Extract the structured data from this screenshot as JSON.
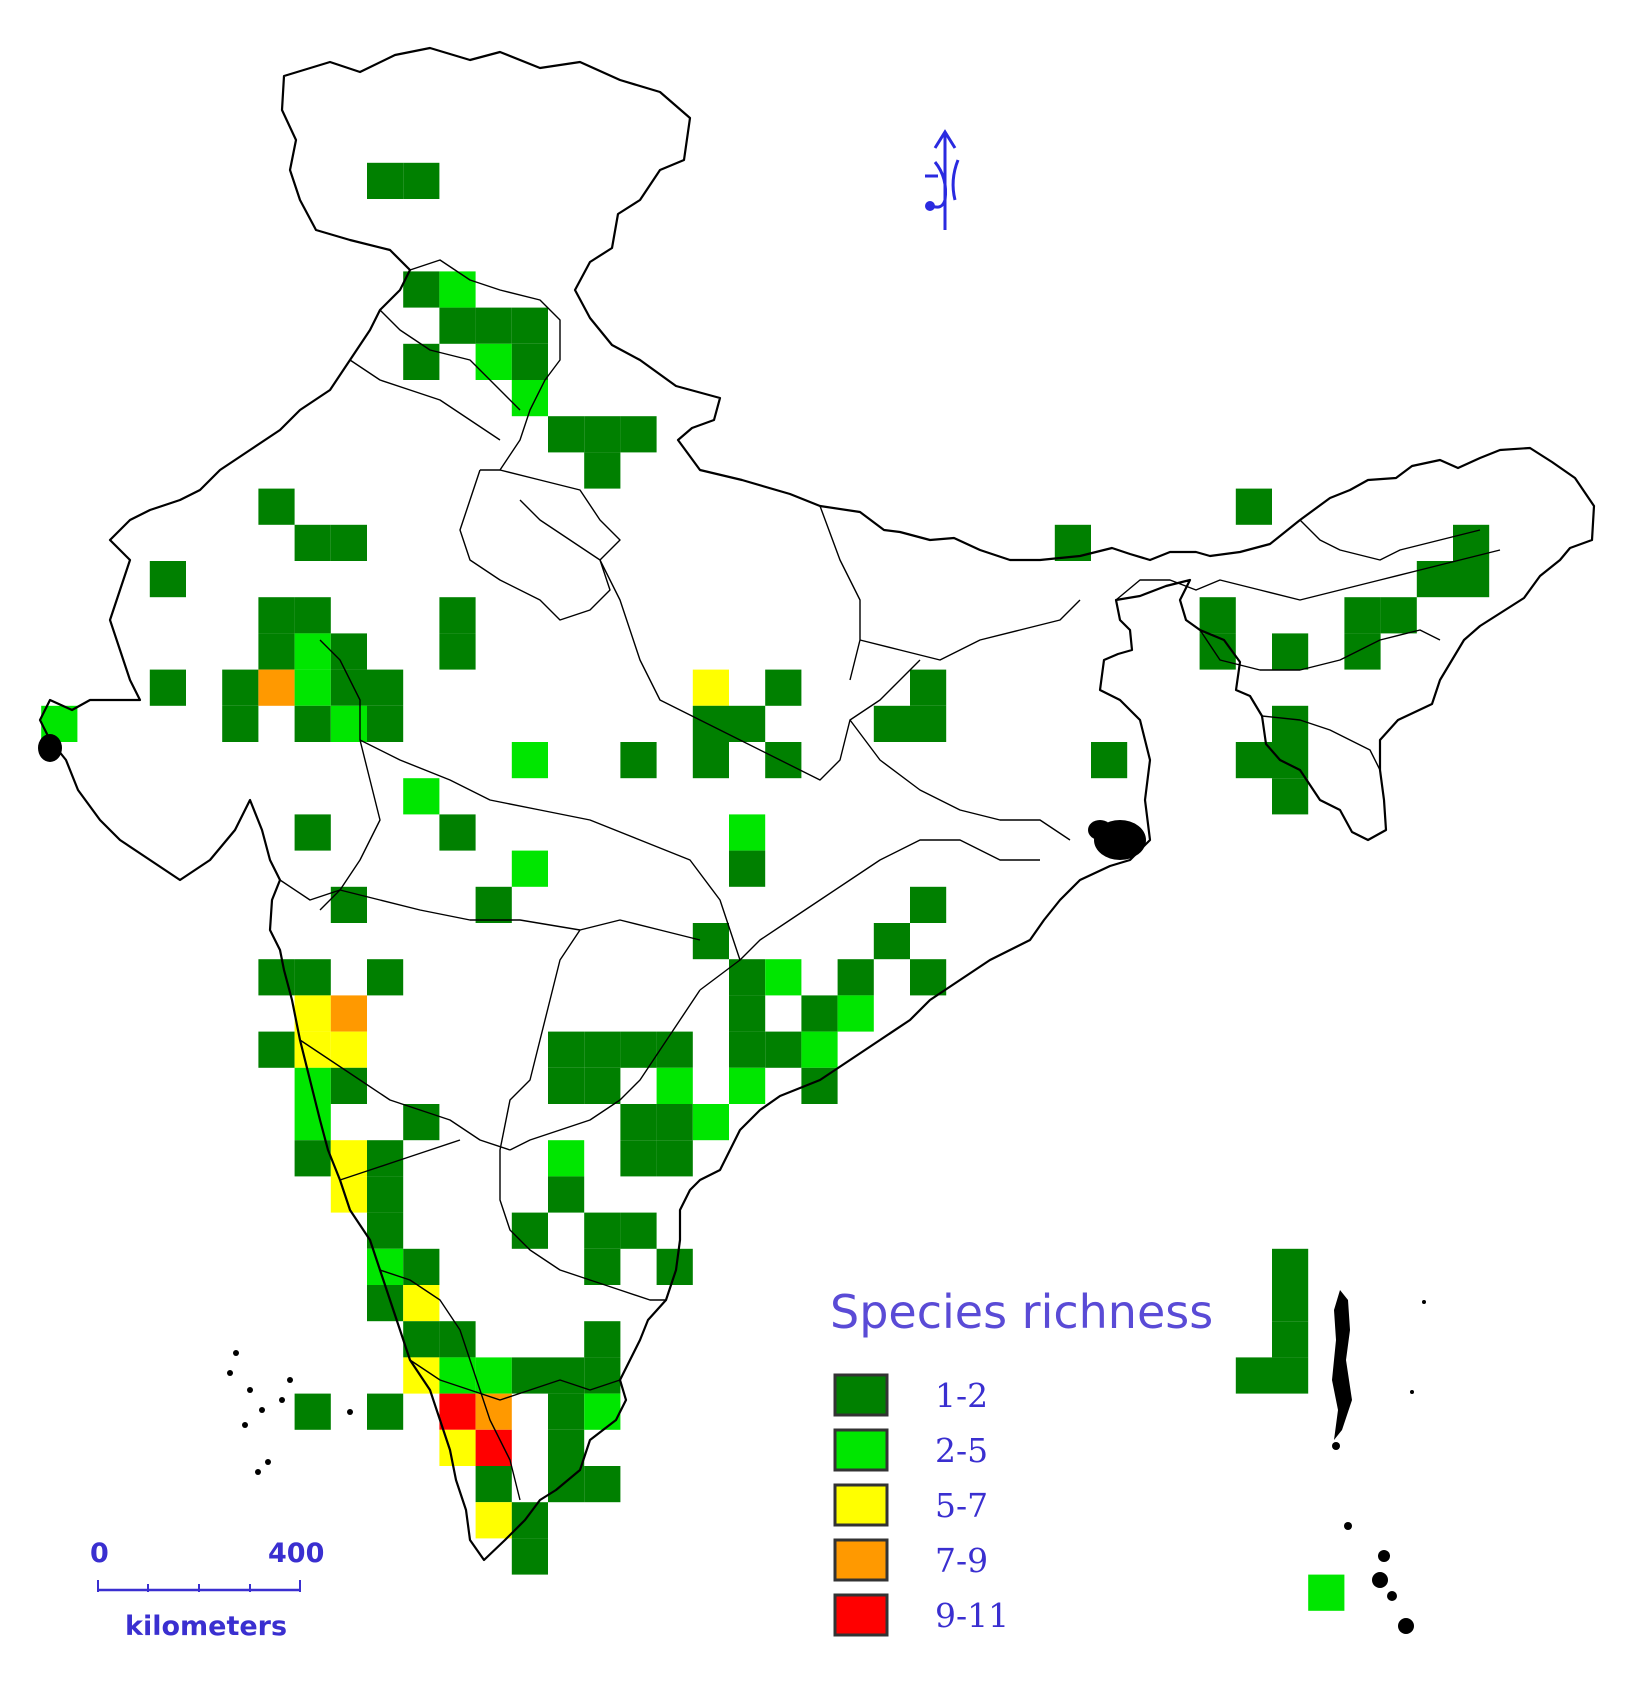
{
  "legend": {
    "title": "Species richness",
    "classes": [
      {
        "label": "1-2",
        "color": "#008000"
      },
      {
        "label": "2-5",
        "color": "#00e600"
      },
      {
        "label": "5-7",
        "color": "#ffff00"
      },
      {
        "label": "7-9",
        "color": "#ff9900"
      },
      {
        "label": "9-11",
        "color": "#ff0000"
      }
    ]
  },
  "scale_bar": {
    "start_label": "0",
    "end_label": "400",
    "unit_label": "kilometers"
  },
  "north_arrow": {
    "icon": "north-arrow-icon"
  },
  "grid_cells": [
    {
      "c": 10,
      "r": 4,
      "cls": 0
    },
    {
      "c": 11,
      "r": 4,
      "cls": 0
    },
    {
      "c": 11,
      "r": 7,
      "cls": 0
    },
    {
      "c": 12,
      "r": 7,
      "cls": 1
    },
    {
      "c": 12,
      "r": 8,
      "cls": 0
    },
    {
      "c": 13,
      "r": 8,
      "cls": 0
    },
    {
      "c": 14,
      "r": 8,
      "cls": 0
    },
    {
      "c": 11,
      "r": 9,
      "cls": 0
    },
    {
      "c": 13,
      "r": 9,
      "cls": 1
    },
    {
      "c": 14,
      "r": 9,
      "cls": 0
    },
    {
      "c": 14,
      "r": 10,
      "cls": 1
    },
    {
      "c": 15,
      "r": 11,
      "cls": 0
    },
    {
      "c": 16,
      "r": 11,
      "cls": 0
    },
    {
      "c": 17,
      "r": 11,
      "cls": 0
    },
    {
      "c": 16,
      "r": 12,
      "cls": 0
    },
    {
      "c": 7,
      "r": 13,
      "cls": 0
    },
    {
      "c": 8,
      "r": 14,
      "cls": 0
    },
    {
      "c": 9,
      "r": 14,
      "cls": 0
    },
    {
      "c": 4,
      "r": 15,
      "cls": 0
    },
    {
      "c": 7,
      "r": 16,
      "cls": 0
    },
    {
      "c": 8,
      "r": 16,
      "cls": 0
    },
    {
      "c": 12,
      "r": 16,
      "cls": 0
    },
    {
      "c": 7,
      "r": 17,
      "cls": 0
    },
    {
      "c": 8,
      "r": 17,
      "cls": 1
    },
    {
      "c": 9,
      "r": 17,
      "cls": 0
    },
    {
      "c": 12,
      "r": 17,
      "cls": 0
    },
    {
      "c": 4,
      "r": 18,
      "cls": 0
    },
    {
      "c": 6,
      "r": 18,
      "cls": 0
    },
    {
      "c": 7,
      "r": 18,
      "cls": 3
    },
    {
      "c": 8,
      "r": 18,
      "cls": 1
    },
    {
      "c": 9,
      "r": 18,
      "cls": 0
    },
    {
      "c": 10,
      "r": 18,
      "cls": 0
    },
    {
      "c": 6,
      "r": 19,
      "cls": 0
    },
    {
      "c": 8,
      "r": 19,
      "cls": 0
    },
    {
      "c": 9,
      "r": 19,
      "cls": 1
    },
    {
      "c": 10,
      "r": 19,
      "cls": 0
    },
    {
      "c": 1,
      "r": 19,
      "cls": 1
    },
    {
      "c": 19,
      "r": 18,
      "cls": 2
    },
    {
      "c": 21,
      "r": 18,
      "cls": 0
    },
    {
      "c": 19,
      "r": 19,
      "cls": 0
    },
    {
      "c": 20,
      "r": 19,
      "cls": 0
    },
    {
      "c": 14,
      "r": 20,
      "cls": 1
    },
    {
      "c": 17,
      "r": 20,
      "cls": 0
    },
    {
      "c": 19,
      "r": 20,
      "cls": 0
    },
    {
      "c": 21,
      "r": 20,
      "cls": 0
    },
    {
      "c": 11,
      "r": 21,
      "cls": 1
    },
    {
      "c": 8,
      "r": 22,
      "cls": 0
    },
    {
      "c": 12,
      "r": 22,
      "cls": 0
    },
    {
      "c": 20,
      "r": 22,
      "cls": 1
    },
    {
      "c": 14,
      "r": 23,
      "cls": 1
    },
    {
      "c": 20,
      "r": 23,
      "cls": 0
    },
    {
      "c": 9,
      "r": 24,
      "cls": 0
    },
    {
      "c": 13,
      "r": 24,
      "cls": 0
    },
    {
      "c": 24,
      "r": 19,
      "cls": 0
    },
    {
      "c": 25,
      "r": 19,
      "cls": 0
    },
    {
      "c": 25,
      "r": 18,
      "cls": 0
    },
    {
      "c": 30,
      "r": 20,
      "cls": 0
    },
    {
      "c": 34,
      "r": 13,
      "cls": 0
    },
    {
      "c": 29,
      "r": 14,
      "cls": 0
    },
    {
      "c": 40,
      "r": 14,
      "cls": 0
    },
    {
      "c": 39,
      "r": 15,
      "cls": 0
    },
    {
      "c": 40,
      "r": 15,
      "cls": 0
    },
    {
      "c": 33,
      "r": 16,
      "cls": 0
    },
    {
      "c": 37,
      "r": 16,
      "cls": 0
    },
    {
      "c": 38,
      "r": 16,
      "cls": 0
    },
    {
      "c": 33,
      "r": 17,
      "cls": 0
    },
    {
      "c": 35,
      "r": 17,
      "cls": 0
    },
    {
      "c": 37,
      "r": 17,
      "cls": 0
    },
    {
      "c": 35,
      "r": 19,
      "cls": 0
    },
    {
      "c": 34,
      "r": 20,
      "cls": 0
    },
    {
      "c": 35,
      "r": 20,
      "cls": 0
    },
    {
      "c": 35,
      "r": 21,
      "cls": 0
    },
    {
      "c": 25,
      "r": 24,
      "cls": 0
    },
    {
      "c": 19,
      "r": 25,
      "cls": 0
    },
    {
      "c": 24,
      "r": 25,
      "cls": 0
    },
    {
      "c": 7,
      "r": 26,
      "cls": 0
    },
    {
      "c": 8,
      "r": 26,
      "cls": 0
    },
    {
      "c": 10,
      "r": 26,
      "cls": 0
    },
    {
      "c": 20,
      "r": 26,
      "cls": 0
    },
    {
      "c": 21,
      "r": 26,
      "cls": 1
    },
    {
      "c": 23,
      "r": 26,
      "cls": 0
    },
    {
      "c": 25,
      "r": 26,
      "cls": 0
    },
    {
      "c": 8,
      "r": 27,
      "cls": 2
    },
    {
      "c": 9,
      "r": 27,
      "cls": 3
    },
    {
      "c": 20,
      "r": 27,
      "cls": 0
    },
    {
      "c": 22,
      "r": 27,
      "cls": 0
    },
    {
      "c": 23,
      "r": 27,
      "cls": 1
    },
    {
      "c": 7,
      "r": 28,
      "cls": 0
    },
    {
      "c": 8,
      "r": 28,
      "cls": 2
    },
    {
      "c": 9,
      "r": 28,
      "cls": 2
    },
    {
      "c": 15,
      "r": 28,
      "cls": 0
    },
    {
      "c": 16,
      "r": 28,
      "cls": 0
    },
    {
      "c": 17,
      "r": 28,
      "cls": 0
    },
    {
      "c": 18,
      "r": 28,
      "cls": 0
    },
    {
      "c": 20,
      "r": 28,
      "cls": 0
    },
    {
      "c": 21,
      "r": 28,
      "cls": 0
    },
    {
      "c": 22,
      "r": 28,
      "cls": 1
    },
    {
      "c": 8,
      "r": 29,
      "cls": 1
    },
    {
      "c": 9,
      "r": 29,
      "cls": 0
    },
    {
      "c": 15,
      "r": 29,
      "cls": 0
    },
    {
      "c": 16,
      "r": 29,
      "cls": 0
    },
    {
      "c": 18,
      "r": 29,
      "cls": 1
    },
    {
      "c": 20,
      "r": 29,
      "cls": 1
    },
    {
      "c": 22,
      "r": 29,
      "cls": 0
    },
    {
      "c": 8,
      "r": 30,
      "cls": 1
    },
    {
      "c": 11,
      "r": 30,
      "cls": 0
    },
    {
      "c": 17,
      "r": 30,
      "cls": 0
    },
    {
      "c": 18,
      "r": 30,
      "cls": 0
    },
    {
      "c": 19,
      "r": 30,
      "cls": 1
    },
    {
      "c": 8,
      "r": 31,
      "cls": 0
    },
    {
      "c": 9,
      "r": 31,
      "cls": 2
    },
    {
      "c": 10,
      "r": 31,
      "cls": 0
    },
    {
      "c": 15,
      "r": 31,
      "cls": 1
    },
    {
      "c": 17,
      "r": 31,
      "cls": 0
    },
    {
      "c": 18,
      "r": 31,
      "cls": 0
    },
    {
      "c": 9,
      "r": 32,
      "cls": 2
    },
    {
      "c": 10,
      "r": 32,
      "cls": 0
    },
    {
      "c": 15,
      "r": 32,
      "cls": 0
    },
    {
      "c": 10,
      "r": 33,
      "cls": 0
    },
    {
      "c": 14,
      "r": 33,
      "cls": 0
    },
    {
      "c": 16,
      "r": 33,
      "cls": 0
    },
    {
      "c": 17,
      "r": 33,
      "cls": 0
    },
    {
      "c": 10,
      "r": 34,
      "cls": 1
    },
    {
      "c": 11,
      "r": 34,
      "cls": 0
    },
    {
      "c": 16,
      "r": 34,
      "cls": 0
    },
    {
      "c": 18,
      "r": 34,
      "cls": 0
    },
    {
      "c": 10,
      "r": 35,
      "cls": 0
    },
    {
      "c": 11,
      "r": 35,
      "cls": 2
    },
    {
      "c": 11,
      "r": 36,
      "cls": 0
    },
    {
      "c": 12,
      "r": 36,
      "cls": 0
    },
    {
      "c": 16,
      "r": 36,
      "cls": 0
    },
    {
      "c": 11,
      "r": 37,
      "cls": 2
    },
    {
      "c": 12,
      "r": 37,
      "cls": 1
    },
    {
      "c": 13,
      "r": 37,
      "cls": 1
    },
    {
      "c": 14,
      "r": 37,
      "cls": 0
    },
    {
      "c": 15,
      "r": 37,
      "cls": 0
    },
    {
      "c": 16,
      "r": 37,
      "cls": 0
    },
    {
      "c": 8,
      "r": 38,
      "cls": 0
    },
    {
      "c": 10,
      "r": 38,
      "cls": 0
    },
    {
      "c": 12,
      "r": 38,
      "cls": 4
    },
    {
      "c": 13,
      "r": 38,
      "cls": 3
    },
    {
      "c": 15,
      "r": 38,
      "cls": 0
    },
    {
      "c": 16,
      "r": 38,
      "cls": 1
    },
    {
      "c": 12,
      "r": 39,
      "cls": 2
    },
    {
      "c": 13,
      "r": 39,
      "cls": 4
    },
    {
      "c": 15,
      "r": 39,
      "cls": 0
    },
    {
      "c": 13,
      "r": 40,
      "cls": 0
    },
    {
      "c": 15,
      "r": 40,
      "cls": 0
    },
    {
      "c": 16,
      "r": 40,
      "cls": 0
    },
    {
      "c": 13,
      "r": 41,
      "cls": 2
    },
    {
      "c": 14,
      "r": 41,
      "cls": 0
    },
    {
      "c": 14,
      "r": 42,
      "cls": 0
    },
    {
      "c": 35,
      "r": 34,
      "cls": 0
    },
    {
      "c": 35,
      "r": 35,
      "cls": 0
    },
    {
      "c": 35,
      "r": 36,
      "cls": 0
    },
    {
      "c": 34,
      "r": 37,
      "cls": 0
    },
    {
      "c": 35,
      "r": 37,
      "cls": 0
    },
    {
      "c": 36,
      "r": 43,
      "cls": 1
    }
  ]
}
